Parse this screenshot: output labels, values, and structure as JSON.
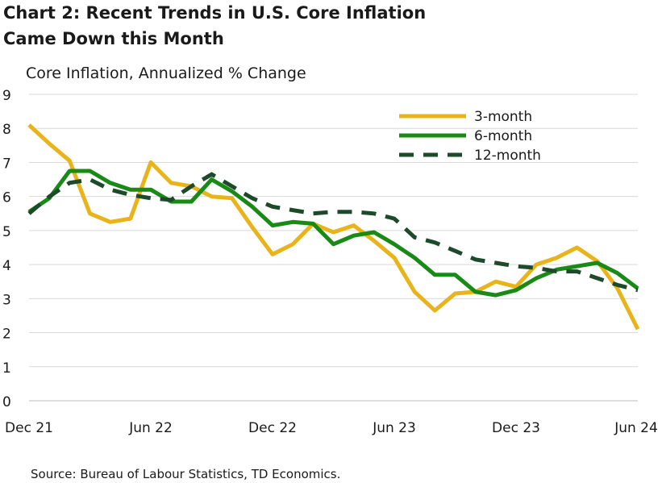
{
  "title_line1": "Chart 2: Recent Trends in U.S. Core Inflation",
  "title_line2": "Came Down this Month",
  "source": "Source: Bureau of Labour Statistics, TD Economics.",
  "chart_data": {
    "type": "line",
    "title": "Chart 2: Recent Trends in U.S. Core Inflation Came Down this Month",
    "ylabel": "Core Inflation, Annualized % Change",
    "xlabel": "",
    "ylim": [
      0,
      9
    ],
    "y_ticks": [
      "0",
      "1",
      "2",
      "3",
      "4",
      "5",
      "6",
      "7",
      "8",
      "9"
    ],
    "x_tick_labels": [
      "Dec 21",
      "Jun 22",
      "Dec 22",
      "Jun 23",
      "Dec 23",
      "Jun 24"
    ],
    "grid": true,
    "legend_position": "top-right",
    "x": [
      "Dec 21",
      "Jan 22",
      "Feb 22",
      "Mar 22",
      "Apr 22",
      "May 22",
      "Jun 22",
      "Jul 22",
      "Aug 22",
      "Sep 22",
      "Oct 22",
      "Nov 22",
      "Dec 22",
      "Jan 23",
      "Feb 23",
      "Mar 23",
      "Apr 23",
      "May 23",
      "Jun 23",
      "Jul 23",
      "Aug 23",
      "Sep 23",
      "Oct 23",
      "Nov 23",
      "Dec 23",
      "Jan 24",
      "Feb 24",
      "Mar 24",
      "Apr 24",
      "May 24",
      "Jun 24"
    ],
    "series": [
      {
        "name": "3-month",
        "color": "#e8b41a",
        "style": "solid",
        "values": [
          8.1,
          7.55,
          7.05,
          5.5,
          5.25,
          5.35,
          7.0,
          6.4,
          6.3,
          6.0,
          5.95,
          5.1,
          4.3,
          4.6,
          5.2,
          4.95,
          5.15,
          4.7,
          4.2,
          3.2,
          2.65,
          3.15,
          3.2,
          3.5,
          3.35,
          4.0,
          4.2,
          4.5,
          4.1,
          3.3,
          2.1
        ]
      },
      {
        "name": "6-month",
        "color": "#1a8a16",
        "style": "solid",
        "values": [
          5.55,
          5.95,
          6.75,
          6.75,
          6.4,
          6.2,
          6.2,
          5.85,
          5.85,
          6.5,
          6.15,
          5.7,
          5.15,
          5.25,
          5.2,
          4.6,
          4.85,
          4.95,
          4.6,
          4.2,
          3.7,
          3.7,
          3.2,
          3.1,
          3.25,
          3.6,
          3.85,
          3.95,
          4.05,
          3.75,
          3.3
        ]
      },
      {
        "name": "12-month",
        "color": "#1c4a2a",
        "style": "dashed",
        "values": [
          5.5,
          6.0,
          6.4,
          6.5,
          6.2,
          6.05,
          5.95,
          5.9,
          6.3,
          6.65,
          6.3,
          5.95,
          5.7,
          5.6,
          5.5,
          5.55,
          5.55,
          5.5,
          5.35,
          4.8,
          4.65,
          4.4,
          4.15,
          4.05,
          3.95,
          3.9,
          3.8,
          3.8,
          3.6,
          3.4,
          3.25
        ]
      }
    ]
  }
}
